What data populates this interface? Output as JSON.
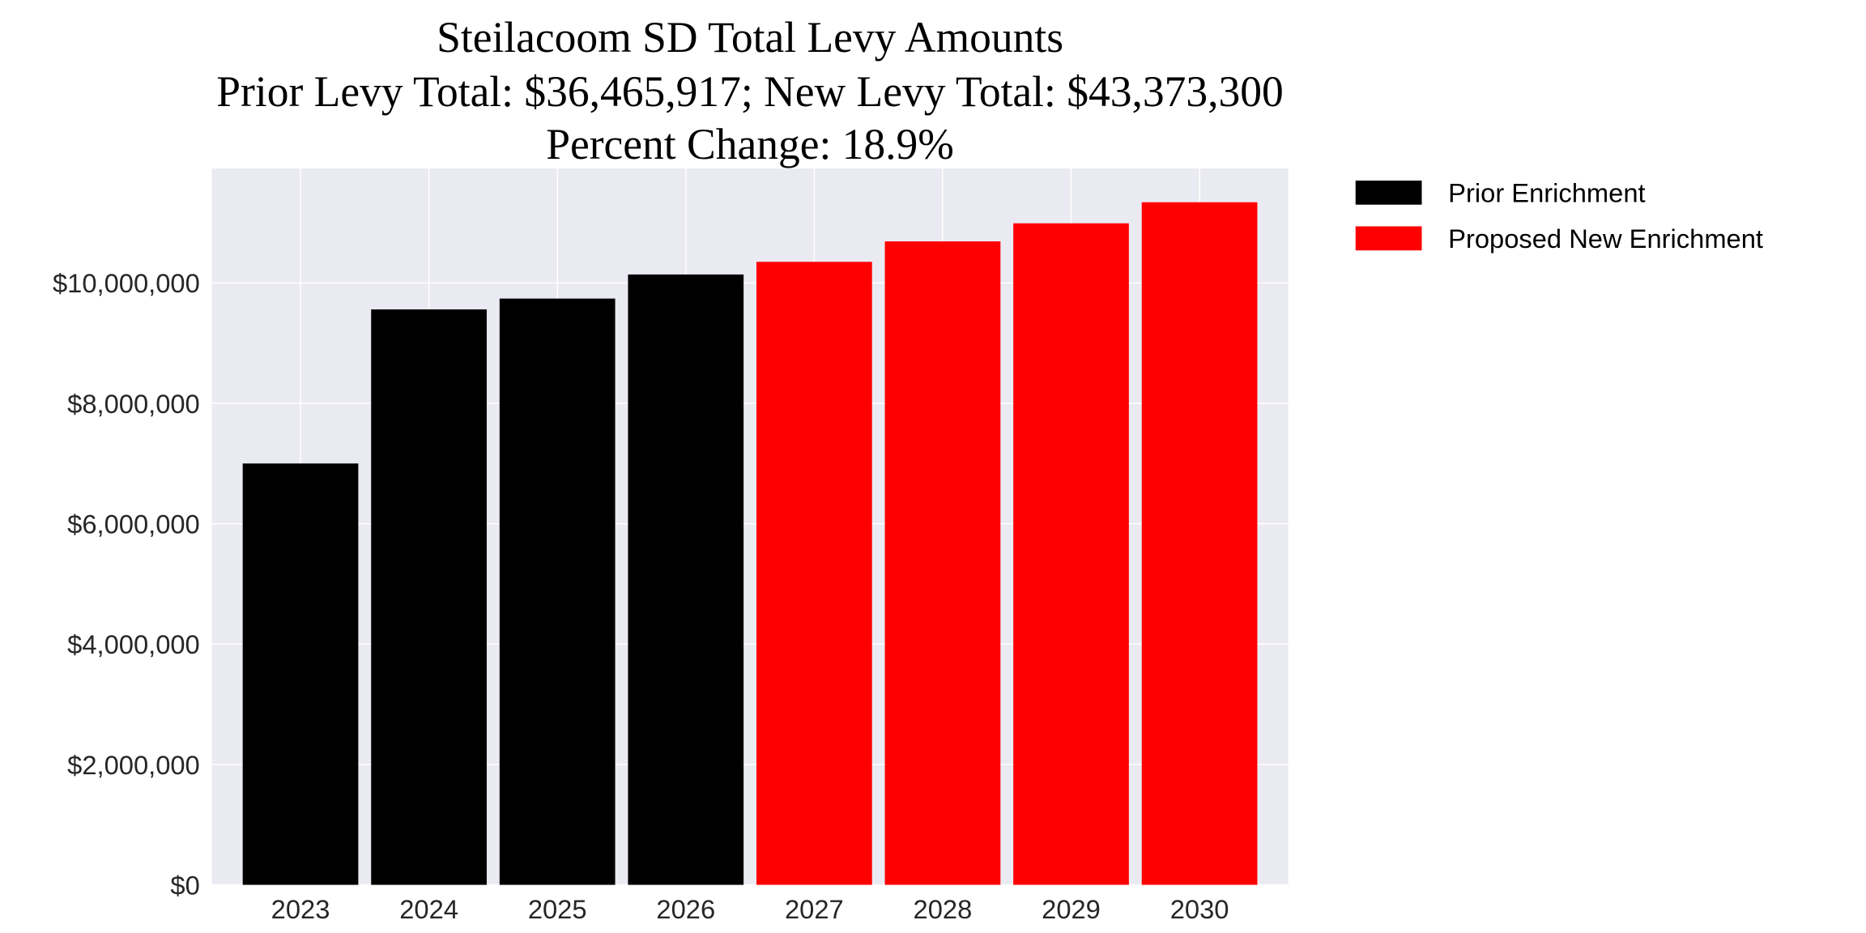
{
  "chart_data": {
    "type": "bar",
    "title": "Steilacoom SD Total Levy Amounts",
    "subtitle_lines": [
      "Prior Levy Total:  $36,465,917; New Levy Total: $43,373,300",
      "Percent Change: 18.9%"
    ],
    "xlabel": "",
    "ylabel": "",
    "categories": [
      "2023",
      "2024",
      "2025",
      "2026",
      "2027",
      "2028",
      "2029",
      "2030"
    ],
    "values": [
      7000000,
      9560000,
      9740000,
      10140000,
      10350000,
      10690000,
      10990000,
      11340000
    ],
    "bar_series": [
      "Prior Enrichment",
      "Prior Enrichment",
      "Prior Enrichment",
      "Prior Enrichment",
      "Proposed New Enrichment",
      "Proposed New Enrichment",
      "Proposed New Enrichment",
      "Proposed New Enrichment"
    ],
    "legend": [
      {
        "name": "Prior Enrichment",
        "color": "#000000"
      },
      {
        "name": "Proposed New Enrichment",
        "color": "#ff0000"
      }
    ],
    "legend_placement": "outside-right-top",
    "yticks": [
      0,
      2000000,
      4000000,
      6000000,
      8000000,
      10000000
    ],
    "ytick_labels": [
      "$0",
      "$2,000,000",
      "$4,000,000",
      "$6,000,000",
      "$8,000,000",
      "$10,000,000"
    ],
    "ylim": [
      0,
      11900000
    ],
    "grid": true,
    "background": "#eaeaf2"
  }
}
